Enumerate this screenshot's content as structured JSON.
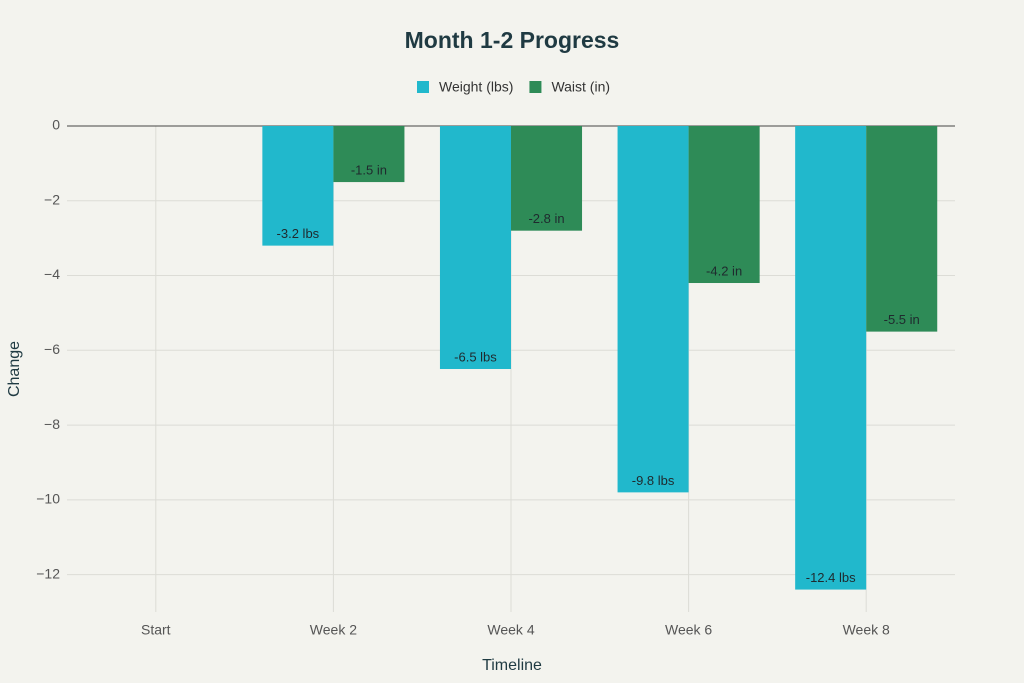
{
  "chart_data": {
    "type": "bar",
    "title": "Month 1-2 Progress",
    "x_label": "Timeline",
    "y_label": "Change",
    "categories": [
      "Start",
      "Week 2",
      "Week 4",
      "Week 6",
      "Week 8"
    ],
    "series": [
      {
        "name": "Weight (lbs)",
        "color": "#21b8cc",
        "values": [
          0,
          -3.2,
          -6.5,
          -9.8,
          -12.4
        ],
        "value_labels": [
          null,
          "-3.2 lbs",
          "-6.5 lbs",
          "-9.8 lbs",
          "-12.4 lbs"
        ]
      },
      {
        "name": "Waist (in)",
        "color": "#2e8b57",
        "values": [
          0,
          -1.5,
          -2.8,
          -4.2,
          -5.5
        ],
        "value_labels": [
          null,
          "-1.5 in",
          "-2.8 in",
          "-4.2 in",
          "-5.5 in"
        ]
      }
    ],
    "ylim": [
      -13,
      0
    ],
    "yticks": [
      0,
      {
        "value": -2,
        "label": "−2"
      },
      {
        "value": -4,
        "label": "−4"
      },
      {
        "value": -6,
        "label": "−6"
      },
      {
        "value": -8,
        "label": "−8"
      },
      {
        "value": -10,
        "label": "−10"
      },
      {
        "value": -12,
        "label": "−12"
      }
    ],
    "grid": true
  }
}
